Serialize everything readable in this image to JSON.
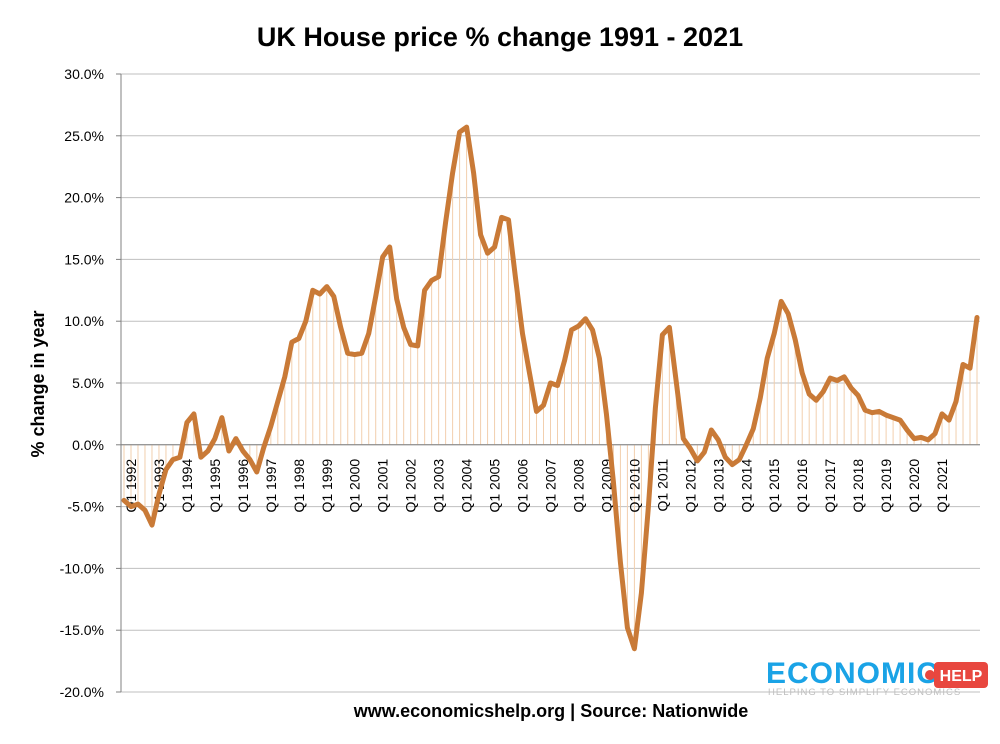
{
  "colors": {
    "line": "#c97a37",
    "drop": "#f2cfae",
    "grid": "#bfbfbf",
    "axis": "#808080",
    "logo_blue": "#1aa3e6",
    "logo_red": "#e8473f"
  },
  "chart_data": {
    "type": "line",
    "title": "UK House price % change  1991 - 2021",
    "ylabel": "% change in year",
    "xlabel": "",
    "ylim": [
      -20,
      30
    ],
    "y_ticks": [
      30,
      25,
      20,
      15,
      10,
      5,
      0,
      -5,
      -10,
      -15,
      -20
    ],
    "y_tick_labels": [
      "30.0%",
      "25.0%",
      "20.0%",
      "15.0%",
      "10.0%",
      "5.0%",
      "0.0%",
      "-5.0%",
      "-10.0%",
      "-15.0%",
      "-20.0%"
    ],
    "x_tick_labels": [
      "Q1 1992",
      "Q1 1993",
      "Q1 1994",
      "Q1 1995",
      "Q1 1996",
      "Q1 1997",
      "Q1 1998",
      "Q1 1999",
      "Q1 2000",
      "Q1 2001",
      "Q1 2002",
      "Q1 2003",
      "Q1 2004",
      "Q1 2005",
      "Q1 2006",
      "Q1 2007",
      "Q1 2008",
      "Q1 2009",
      "Q1 2010",
      "Q1 2011",
      "Q1 2012",
      "Q1 2013",
      "Q1 2014",
      "Q1 2015",
      "Q1 2016",
      "Q1 2017",
      "Q1 2018",
      "Q1 2019",
      "Q1 2020",
      "Q1 2021"
    ],
    "grid": true,
    "drop_lines": true,
    "series": [
      {
        "values": [
          -4.5,
          -5.0,
          -4.8,
          -5.3,
          -6.5,
          -4.0,
          -2.0,
          -1.2,
          -1.0,
          1.8,
          2.5,
          -1.0,
          -0.5,
          0.5,
          2.2,
          -0.5,
          0.5,
          -0.5,
          -1.2,
          -2.2,
          -0.2,
          1.5,
          3.5,
          5.5,
          8.3,
          8.6,
          10.0,
          12.5,
          12.2,
          12.8,
          12.0,
          9.5,
          7.4,
          7.3,
          7.4,
          9.0,
          12.0,
          15.2,
          16.0,
          11.8,
          9.5,
          8.1,
          8.0,
          12.5,
          13.3,
          13.6,
          18.0,
          22.0,
          25.3,
          25.7,
          22.0,
          17.0,
          15.5,
          16.0,
          18.4,
          18.2,
          13.5,
          9.0,
          5.8,
          2.7,
          3.2,
          5.0,
          4.8,
          6.8,
          9.3,
          9.6,
          10.2,
          9.3,
          7.0,
          2.5,
          -3.0,
          -9.5,
          -14.8,
          -16.5,
          -12.0,
          -5.0,
          3.0,
          8.9,
          9.5,
          5.0,
          0.5,
          -0.3,
          -1.3,
          -0.6,
          1.2,
          0.4,
          -1.0,
          -1.6,
          -1.2,
          0.0,
          1.3,
          3.8,
          7.0,
          9.0,
          11.6,
          10.6,
          8.5,
          5.8,
          4.1,
          3.6,
          4.3,
          5.4,
          5.2,
          5.5,
          4.6,
          4.0,
          2.8,
          2.6,
          2.7,
          2.4,
          2.2,
          2.0,
          1.2,
          0.5,
          0.6,
          0.4,
          0.9,
          2.5,
          2.0,
          3.5,
          6.5,
          6.2,
          10.3
        ]
      }
    ]
  },
  "footer": {
    "source": "www.economicshelp.org | Source: Nationwide"
  },
  "logo": {
    "main": "ECONOMICS",
    "badge": "HELP",
    "tagline": "HELPING TO SIMPLIFY ECONOMICS"
  }
}
